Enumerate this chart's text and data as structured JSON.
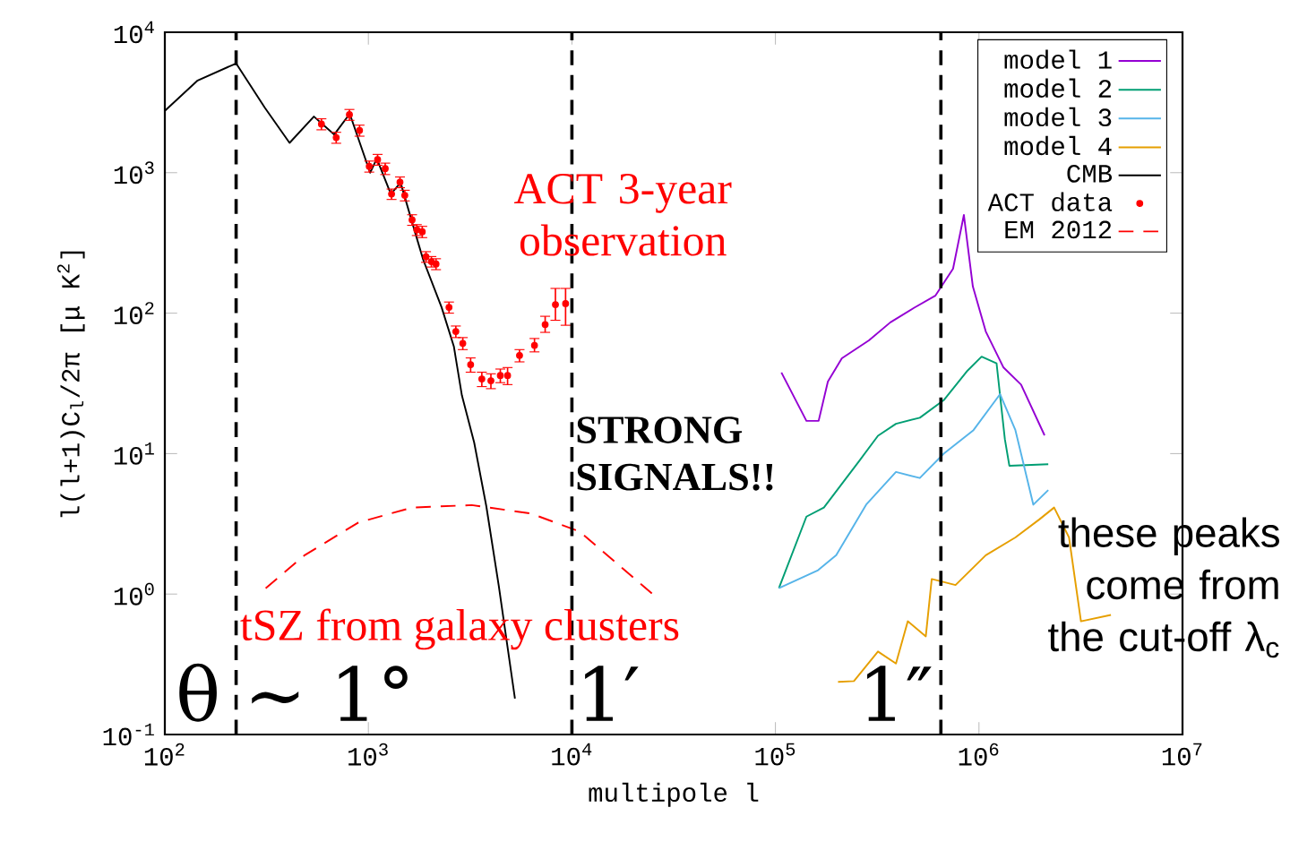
{
  "chart_data": {
    "type": "line",
    "xlabel": "multipole l",
    "ylabel": "l(l+1)C$_{l}$/2π [μ K$^{2}$]",
    "log": "xy",
    "xlim": [
      100,
      10000000
    ],
    "ylim": [
      0.1,
      10000
    ],
    "xticks": [
      {
        "value": 100,
        "label": "10$^{2}$"
      },
      {
        "value": 1000,
        "label": "10$^{3}$"
      },
      {
        "value": 10000,
        "label": "10$^{4}$"
      },
      {
        "value": 100000,
        "label": "10$^{5}$"
      },
      {
        "value": 1000000,
        "label": "10$^{6}$"
      },
      {
        "value": 10000000,
        "label": "10$^{7}$"
      }
    ],
    "yticks": [
      {
        "value": 0.1,
        "label": "10$^{-1}$"
      },
      {
        "value": 1,
        "label": "10$^{0}$"
      },
      {
        "value": 10,
        "label": "10$^{1}$"
      },
      {
        "value": 100,
        "label": "10$^{2}$"
      },
      {
        "value": 1000,
        "label": "10$^{3}$"
      },
      {
        "value": 10000,
        "label": "10$^{4}$"
      }
    ],
    "legend": "top right",
    "annotations": [
      "ACT 3-year observation",
      "STRONG SIGNALS!!",
      "tSZ from galaxy clusters",
      "these peaks come from the cut-off λ$_{c}$"
    ],
    "ref_lines": [
      {
        "axis": "x",
        "value": 224,
        "label": "θ ∼ 1°",
        "color": "#000000",
        "line_style": "dashed"
      },
      {
        "axis": "x",
        "value": 10000,
        "label": "1′",
        "color": "#000000",
        "line_style": "dashed"
      },
      {
        "axis": "x",
        "value": 650000,
        "label": "1″",
        "color": "#000000",
        "line_style": "dashed"
      }
    ],
    "series": [
      {
        "name": "model 1",
        "color": "#9400d3",
        "x": [
          107000,
          142000,
          163000,
          181000,
          212000,
          288000,
          367000,
          479000,
          610000,
          746000,
          843000,
          933000,
          1080000,
          1320000,
          1610000,
          2100000
        ],
        "values": [
          37.8,
          17.1,
          17.1,
          32.6,
          47.7,
          64,
          86,
          109,
          133,
          207,
          500,
          155,
          74,
          41,
          31,
          13.5
        ]
      },
      {
        "name": "model 2",
        "color": "#009e73",
        "x": [
          104000,
          142000,
          173000,
          260000,
          319000,
          391000,
          512000,
          671000,
          879000,
          1030000,
          1220000,
          1340000,
          1410000,
          2190000
        ],
        "values": [
          1.1,
          3.56,
          4.13,
          9.0,
          13.4,
          16.3,
          18,
          24,
          39,
          49,
          44,
          12.7,
          8.2,
          8.4
        ]
      },
      {
        "name": "model 3",
        "color": "#56b4e9",
        "x": [
          104000,
          162000,
          199000,
          279000,
          391000,
          512000,
          671000,
          940000,
          1270000,
          1510000,
          1850000,
          2190000
        ],
        "values": [
          1.1,
          1.48,
          1.89,
          4.33,
          7.4,
          6.7,
          9.98,
          14.7,
          26.5,
          14.7,
          4.33,
          5.5
        ]
      },
      {
        "name": "model 4",
        "color": "#e69f00",
        "x": [
          203000,
          243000,
          319000,
          391000,
          447000,
          548000,
          586000,
          767000,
          1080000,
          1510000,
          1980000,
          2340000,
          2770000,
          3170000,
          4450000
        ],
        "values": [
          0.237,
          0.24,
          0.39,
          0.32,
          0.64,
          0.5,
          1.28,
          1.16,
          1.89,
          2.53,
          3.4,
          4.13,
          2.53,
          0.64,
          0.71
        ]
      },
      {
        "name": "CMB",
        "color": "#000000",
        "x": [
          100,
          145,
          224,
          310,
          410,
          540,
          680,
          810,
          1020,
          1100,
          1290,
          1440,
          1700,
          1860,
          2290,
          2630,
          2880,
          3310,
          3800,
          4370,
          5250
        ],
        "values": [
          2760,
          4540,
          6000,
          2900,
          1630,
          2510,
          1870,
          2630,
          1000,
          1260,
          705,
          850,
          372,
          240,
          110,
          58,
          26,
          12,
          4.2,
          1.15,
          0.18
        ]
      },
      {
        "name": "ACT data",
        "type": "scatter",
        "color": "#ff0000",
        "marker": "circle",
        "x": [
          588,
          695,
          807,
          905,
          1010,
          1110,
          1210,
          1300,
          1430,
          1510,
          1640,
          1730,
          1840,
          1920,
          2040,
          2150,
          2490,
          2690,
          2910,
          3180,
          3610,
          4000,
          4450,
          4830,
          5530,
          6550,
          7390,
          8300,
          9310
        ],
        "values": [
          2220,
          1780,
          2590,
          2000,
          1110,
          1240,
          1070,
          705,
          857,
          690,
          462,
          392,
          380,
          252,
          233,
          224,
          110,
          74,
          61,
          43,
          34,
          33,
          36,
          36,
          50,
          59,
          83,
          115,
          117
        ],
        "errors": [
          200,
          160,
          230,
          180,
          100,
          110,
          100,
          60,
          75,
          60,
          40,
          35,
          35,
          22,
          20,
          20,
          10,
          7,
          6,
          5,
          4,
          4,
          4,
          5,
          [
            45,
            55
          ],
          [
            53,
            66
          ],
          [
            73,
            95
          ],
          [
            89,
            150
          ],
          [
            82,
            150
          ]
        ]
      },
      {
        "name": "EM 2012",
        "color": "#ff0000",
        "line_style": "dashed",
        "x": [
          313,
          486,
          893,
          1640,
          3220,
          6310,
          10900,
          17500,
          25300
        ],
        "values": [
          1.1,
          1.89,
          3.23,
          4.13,
          4.3,
          3.74,
          2.79,
          1.55,
          0.98
        ]
      }
    ]
  }
}
